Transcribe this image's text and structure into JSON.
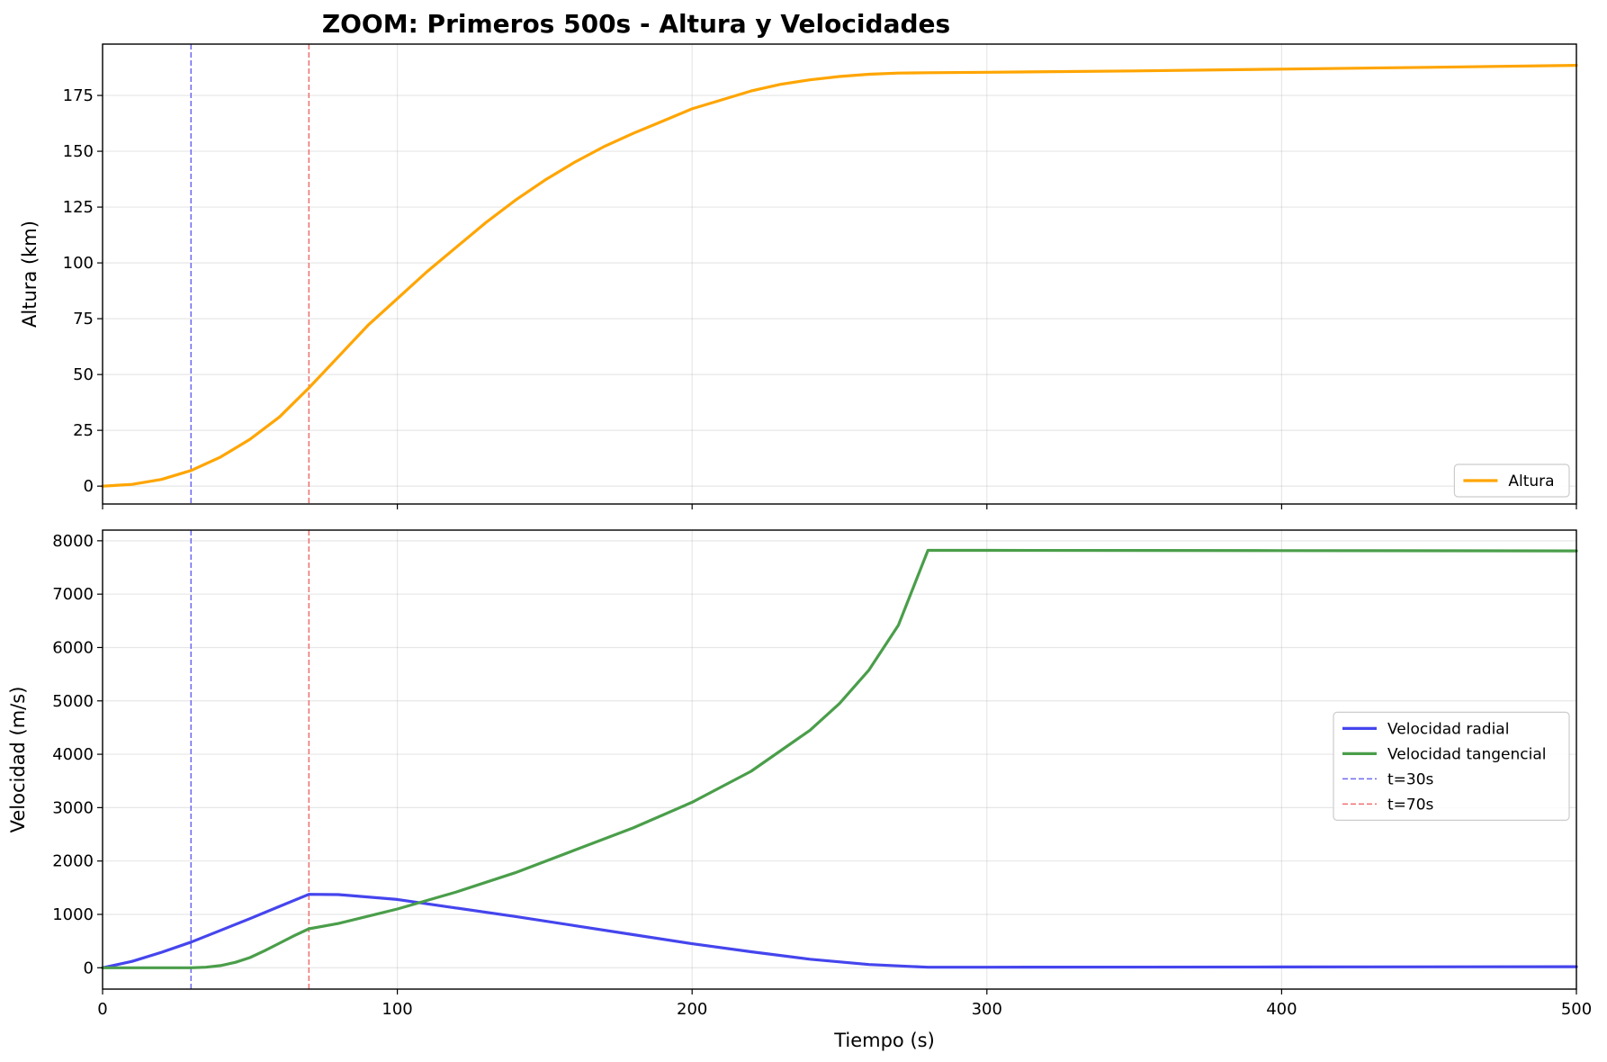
{
  "chart_data": {
    "title": "ZOOM: Primeros 500s - Altura y Velocidades",
    "xlabel": "Tiempo (s)",
    "xlim": [
      0,
      500
    ],
    "x_ticks": [
      0,
      100,
      200,
      300,
      400,
      500
    ],
    "grid": true,
    "colors": {
      "altura": "#ffa500",
      "velocidad_radial": "#4545ee",
      "velocidad_tangencial": "#4a9e4a",
      "t30": "#6b6bf0",
      "t70": "#f07070"
    },
    "panels": [
      {
        "type": "line",
        "ylabel": "Altura (km)",
        "ylim": [
          -8,
          198
        ],
        "y_ticks": [
          0,
          25,
          50,
          75,
          100,
          125,
          150,
          175
        ],
        "legend_position": "lower-right",
        "series": [
          {
            "name": "Altura",
            "x": [
              0,
              10,
              20,
              30,
              40,
              50,
              60,
              70,
              80,
              90,
              100,
              110,
              120,
              130,
              140,
              150,
              160,
              170,
              180,
              190,
              200,
              210,
              220,
              230,
              240,
              250,
              260,
              270,
              280,
              300,
              350,
              400,
              450,
              500
            ],
            "y": [
              0,
              0.8,
              3,
              7,
              13,
              21,
              31,
              44,
              58,
              72,
              84,
              96,
              107,
              118,
              128,
              137,
              145,
              152,
              158,
              163.5,
              169,
              173,
              177,
              180,
              182,
              183.5,
              184.5,
              185,
              185.2,
              185.4,
              186,
              186.8,
              187.6,
              188.5
            ]
          }
        ],
        "vlines": [
          {
            "x": 30,
            "name": "t=30s"
          },
          {
            "x": 70,
            "name": "t=70s"
          }
        ]
      },
      {
        "type": "line",
        "ylabel": "Velocidad (m/s)",
        "ylim": [
          -400,
          8200
        ],
        "y_ticks": [
          0,
          1000,
          2000,
          3000,
          4000,
          5000,
          6000,
          7000,
          8000
        ],
        "legend_position": "center-right",
        "series": [
          {
            "name": "Velocidad radial",
            "x": [
              0,
              10,
              20,
              30,
              40,
              50,
              60,
              70,
              80,
              100,
              120,
              140,
              160,
              180,
              200,
              220,
              240,
              260,
              280,
              300,
              400,
              500
            ],
            "y": [
              0,
              120,
              290,
              480,
              700,
              920,
              1150,
              1375,
              1370,
              1280,
              1120,
              960,
              790,
              620,
              450,
              300,
              160,
              60,
              10,
              10,
              15,
              20
            ]
          },
          {
            "name": "Velocidad tangencial",
            "x": [
              0,
              30,
              35,
              40,
              45,
              50,
              55,
              60,
              65,
              70,
              80,
              100,
              120,
              140,
              160,
              180,
              200,
              220,
              240,
              250,
              260,
              270,
              280,
              300,
              400,
              500
            ],
            "y": [
              0,
              0,
              10,
              40,
              100,
              190,
              320,
              460,
              600,
              730,
              830,
              1100,
              1420,
              1780,
              2200,
              2620,
              3100,
              3680,
              4450,
              4950,
              5580,
              6420,
              7820,
              7820,
              7815,
              7810
            ]
          }
        ],
        "vlines": [
          {
            "x": 30,
            "name": "t=30s"
          },
          {
            "x": 70,
            "name": "t=70s"
          }
        ]
      }
    ]
  }
}
